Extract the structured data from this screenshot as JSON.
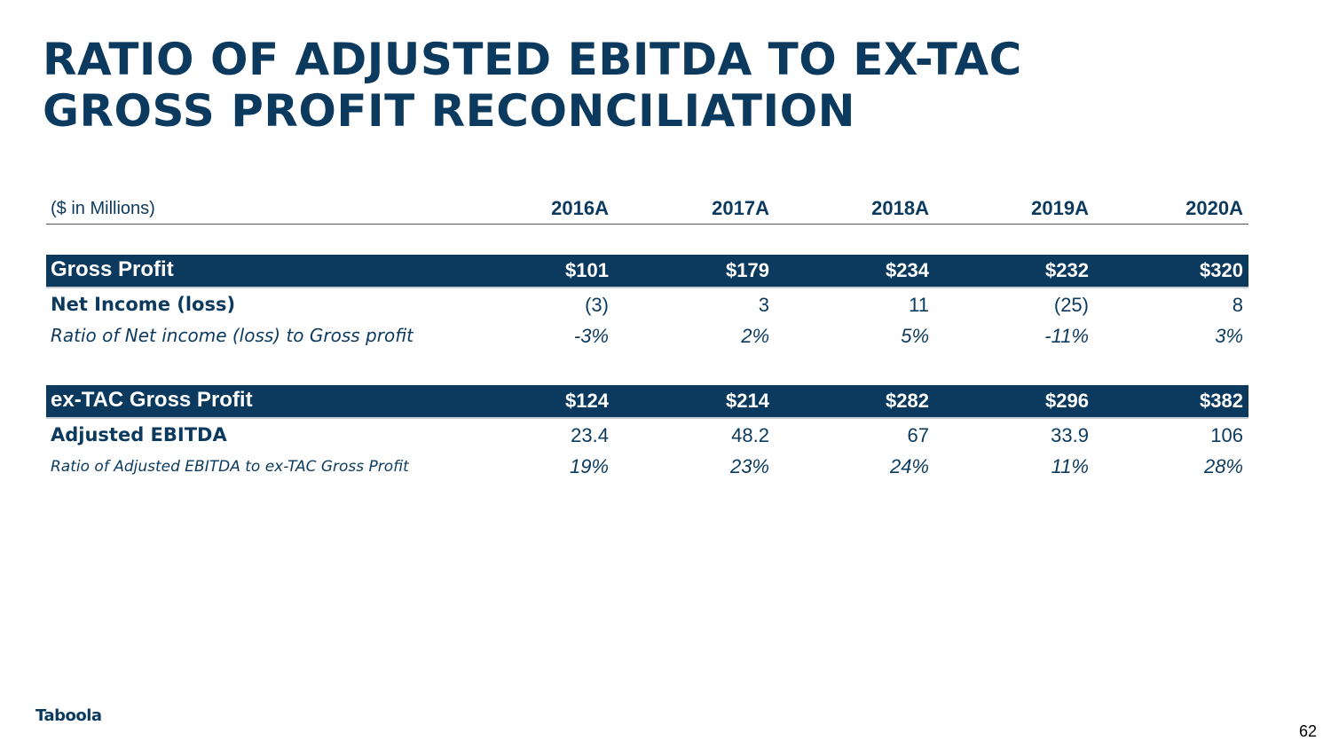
{
  "title": {
    "line1": "RATIO OF ADJUSTED EBITDA TO EX-TAC",
    "line2": "GROSS PROFIT RECONCILIATION"
  },
  "table": {
    "unit_label": "($ in Millions)",
    "columns": [
      "2016A",
      "2017A",
      "2018A",
      "2019A",
      "2020A"
    ],
    "section1": {
      "band": {
        "label": "Gross Profit",
        "values": [
          "$101",
          "$179",
          "$234",
          "$232",
          "$320"
        ]
      },
      "row": {
        "label": "Net Income (loss)",
        "values": [
          "(3)",
          "3",
          "11",
          "(25)",
          "8"
        ]
      },
      "ratio": {
        "label": "Ratio of Net income (loss) to Gross profit",
        "values": [
          "-3%",
          "2%",
          "5%",
          "-11%",
          "3%"
        ]
      }
    },
    "section2": {
      "band": {
        "label": "ex-TAC Gross Profit",
        "values": [
          "$124",
          "$214",
          "$282",
          "$296",
          "$382"
        ]
      },
      "row": {
        "label": "Adjusted EBITDA",
        "values": [
          "23.4",
          "48.2",
          "67",
          "33.9",
          "106"
        ]
      },
      "ratio": {
        "label": "Ratio of Adjusted EBITDA to ex-TAC Gross Profit",
        "values": [
          "19%",
          "23%",
          "24%",
          "11%",
          "28%"
        ]
      }
    }
  },
  "footer": {
    "logo": "Taboola",
    "page_number": "62"
  },
  "colors": {
    "brand_navy": "#0b3a5e",
    "band_border": "#c9cdd2"
  }
}
